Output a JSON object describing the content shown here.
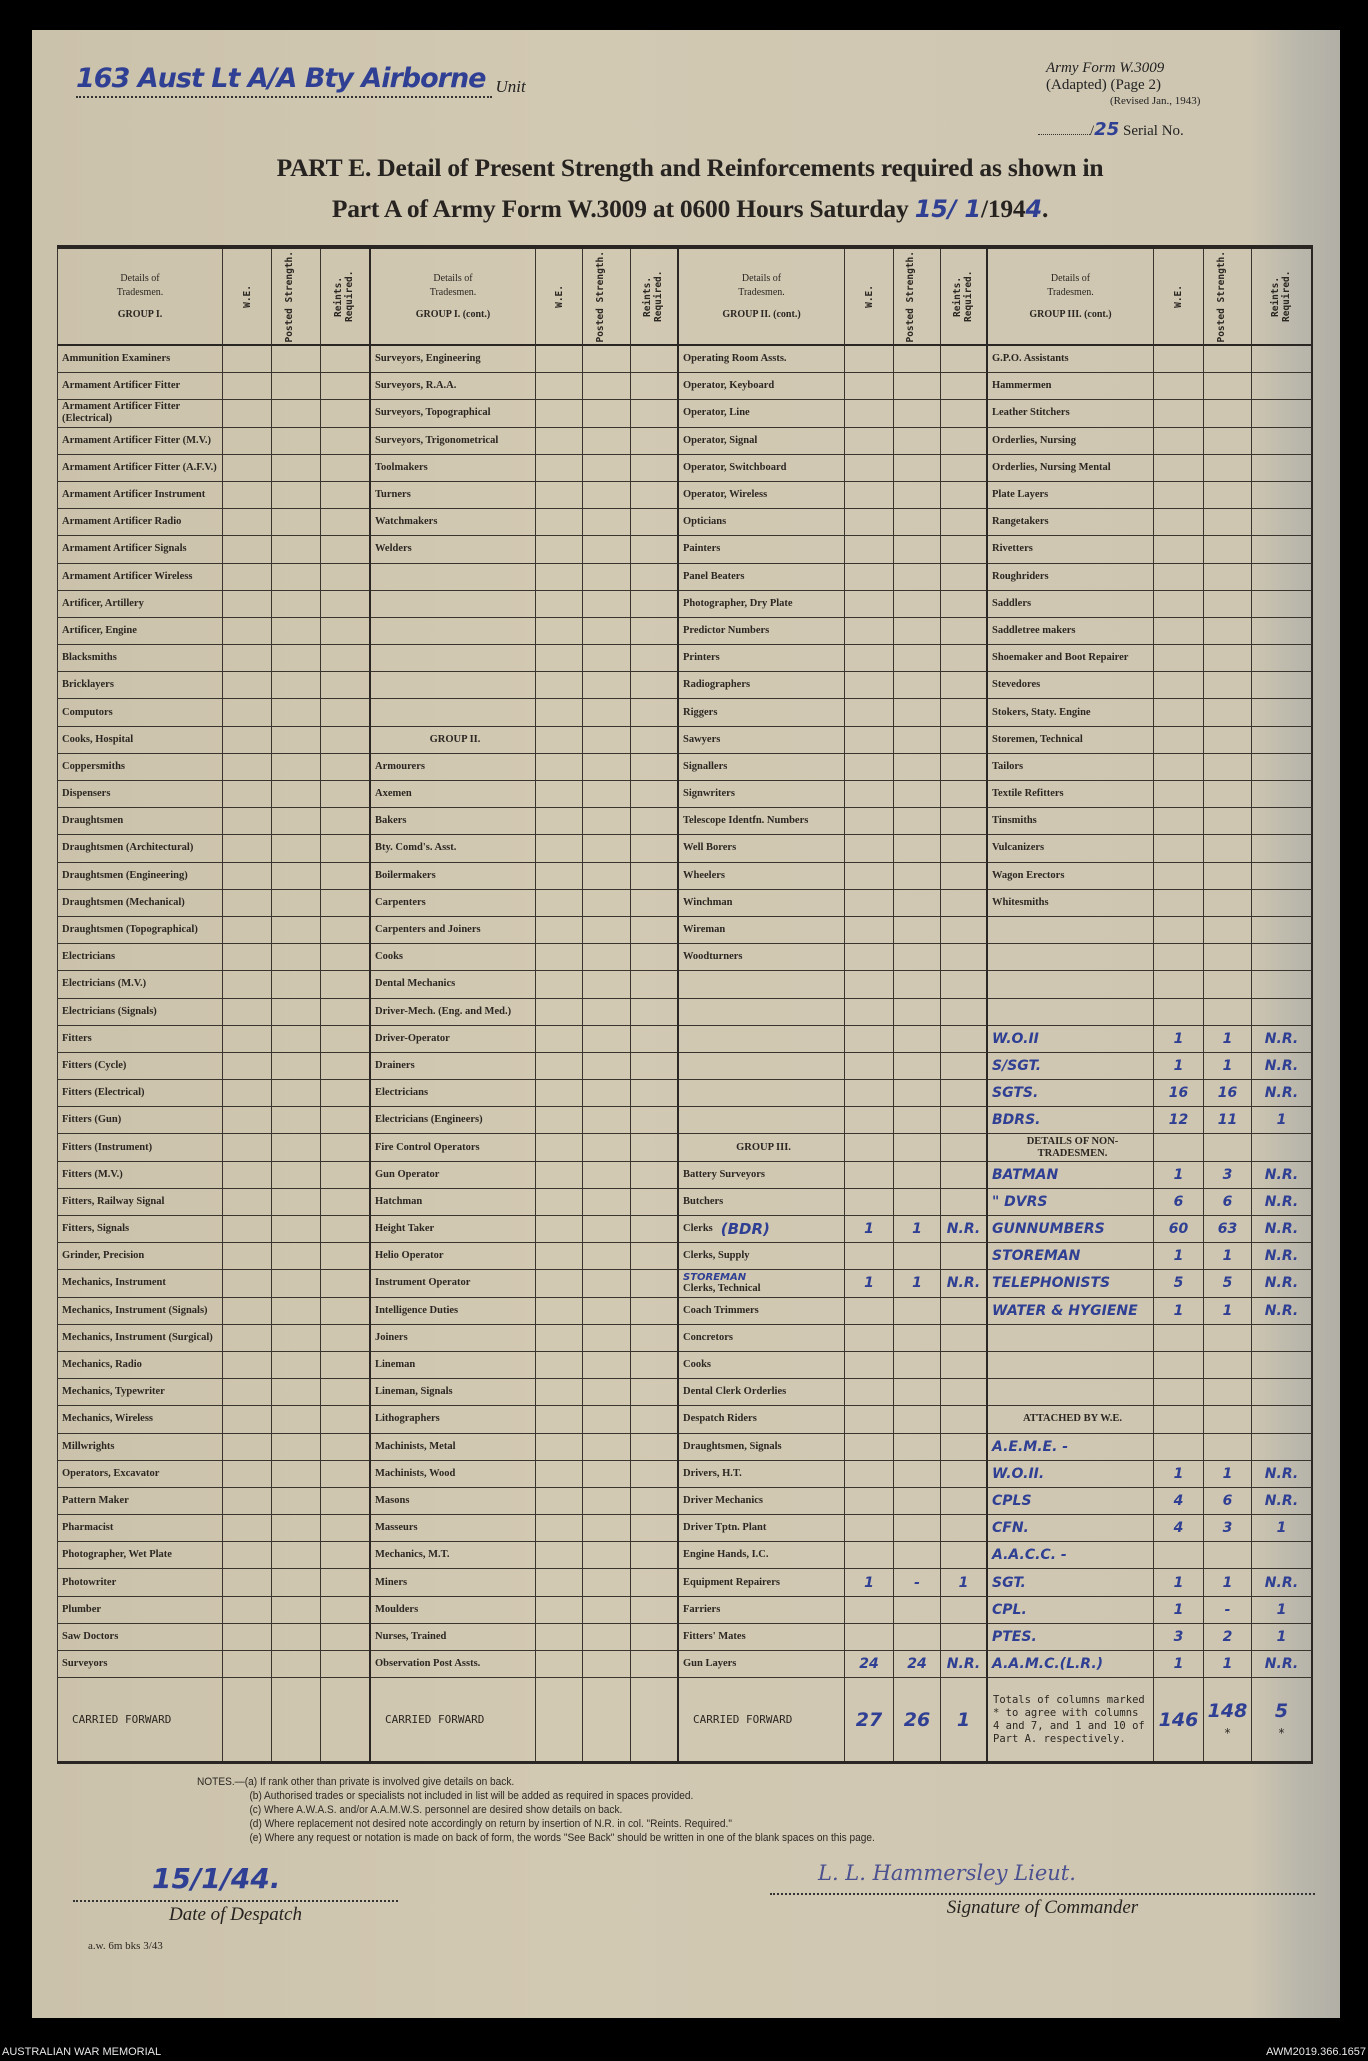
{
  "header": {
    "unit_handwritten": "163 Aust Lt A/A Bty Airborne",
    "unit_label": "Unit",
    "form_name": "Army Form W.3009",
    "form_adapted": "(Adapted) (Page 2)",
    "form_revised": "(Revised Jan., 1943)",
    "serial_prefix": "/",
    "serial_handwritten": "25",
    "serial_label": "Serial No.",
    "title_line1": "PART E.  Detail of Present Strength and Reinforcements required as shown in",
    "title_line2_prefix": "Part A of Army Form W.3009 at 0600 Hours Saturday",
    "title_date_handwritten": "15/ 1",
    "title_year_printed": "/194",
    "title_year_handwritten": "4",
    "title_suffix": "."
  },
  "table": {
    "col_headers": {
      "details": "Details of",
      "tradesmen": "Tradesmen.",
      "we": "W.E.",
      "posted": "Posted Strength.",
      "reinf": "Reints. Required."
    },
    "groups": [
      {
        "heading": "GROUP I.",
        "rows": [
          {
            "t": "Ammunition Examiners"
          },
          {
            "t": "Armament Artificer Fitter"
          },
          {
            "t": "Armament Artificer Fitter (Electrical)"
          },
          {
            "t": "Armament Artificer Fitter (M.V.)"
          },
          {
            "t": "Armament Artificer Fitter (A.F.V.)"
          },
          {
            "t": "Armament Artificer Instrument"
          },
          {
            "t": "Armament Artificer Radio"
          },
          {
            "t": "Armament Artificer Signals"
          },
          {
            "t": "Armament Artificer Wireless"
          },
          {
            "t": "Artificer, Artillery"
          },
          {
            "t": "Artificer, Engine"
          },
          {
            "t": "Blacksmiths"
          },
          {
            "t": "Bricklayers"
          },
          {
            "t": "Computors"
          },
          {
            "t": "Cooks, Hospital"
          },
          {
            "t": "Coppersmiths"
          },
          {
            "t": "Dispensers"
          },
          {
            "t": "Draughtsmen"
          },
          {
            "t": "Draughtsmen (Architectural)"
          },
          {
            "t": "Draughtsmen (Engineering)"
          },
          {
            "t": "Draughtsmen (Mechanical)"
          },
          {
            "t": "Draughtsmen (Topographical)"
          },
          {
            "t": "Electricians"
          },
          {
            "t": "Electricians (M.V.)"
          },
          {
            "t": "Electricians (Signals)"
          },
          {
            "t": "Fitters"
          },
          {
            "t": "Fitters (Cycle)"
          },
          {
            "t": "Fitters (Electrical)"
          },
          {
            "t": "Fitters (Gun)"
          },
          {
            "t": "Fitters (Instrument)"
          },
          {
            "t": "Fitters (M.V.)"
          },
          {
            "t": "Fitters, Railway Signal"
          },
          {
            "t": "Fitters, Signals"
          },
          {
            "t": "Grinder, Precision"
          },
          {
            "t": "Mechanics, Instrument"
          },
          {
            "t": "Mechanics, Instrument (Signals)"
          },
          {
            "t": "Mechanics, Instrument (Surgical)"
          },
          {
            "t": "Mechanics, Radio"
          },
          {
            "t": "Mechanics, Typewriter"
          },
          {
            "t": "Mechanics, Wireless"
          },
          {
            "t": "Millwrights"
          },
          {
            "t": "Operators, Excavator"
          },
          {
            "t": "Pattern Maker"
          },
          {
            "t": "Pharmacist"
          },
          {
            "t": "Photographer, Wet Plate"
          },
          {
            "t": "Photowriter"
          },
          {
            "t": "Plumber"
          },
          {
            "t": "Saw Doctors"
          },
          {
            "t": "Surveyors"
          }
        ],
        "carried": {
          "label": "CARRIED FORWARD",
          "we": "",
          "ps": "",
          "rr": ""
        }
      },
      {
        "heading": "GROUP I. (cont.)",
        "rows": [
          {
            "t": "Surveyors, Engineering"
          },
          {
            "t": "Surveyors, R.A.A."
          },
          {
            "t": "Surveyors, Topographical"
          },
          {
            "t": "Surveyors, Trigonometrical"
          },
          {
            "t": "Toolmakers"
          },
          {
            "t": "Turners"
          },
          {
            "t": "Watchmakers"
          },
          {
            "t": "Welders"
          },
          {
            "t": ""
          },
          {
            "t": ""
          },
          {
            "t": ""
          },
          {
            "t": ""
          },
          {
            "t": ""
          },
          {
            "t": ""
          },
          {
            "t": "GROUP II.",
            "s": "heading"
          },
          {
            "t": "Armourers"
          },
          {
            "t": "Axemen"
          },
          {
            "t": "Bakers"
          },
          {
            "t": "Bty. Comd's. Asst."
          },
          {
            "t": "Boilermakers"
          },
          {
            "t": "Carpenters"
          },
          {
            "t": "Carpenters and Joiners"
          },
          {
            "t": "Cooks"
          },
          {
            "t": "Dental Mechanics"
          },
          {
            "t": "Driver-Mech. (Eng. and Med.)"
          },
          {
            "t": "Driver-Operator"
          },
          {
            "t": "Drainers"
          },
          {
            "t": "Electricians"
          },
          {
            "t": "Electricians (Engineers)"
          },
          {
            "t": "Fire Control Operators"
          },
          {
            "t": "Gun Operator"
          },
          {
            "t": "Hatchman"
          },
          {
            "t": "Height Taker"
          },
          {
            "t": "Helio Operator"
          },
          {
            "t": "Instrument Operator"
          },
          {
            "t": "Intelligence Duties"
          },
          {
            "t": "Joiners"
          },
          {
            "t": "Lineman"
          },
          {
            "t": "Lineman, Signals"
          },
          {
            "t": "Lithographers"
          },
          {
            "t": "Machinists, Metal"
          },
          {
            "t": "Machinists, Wood"
          },
          {
            "t": "Masons"
          },
          {
            "t": "Masseurs"
          },
          {
            "t": "Mechanics, M.T."
          },
          {
            "t": "Miners"
          },
          {
            "t": "Moulders"
          },
          {
            "t": "Nurses, Trained"
          },
          {
            "t": "Observation Post Assts."
          }
        ],
        "carried": {
          "label": "CARRIED FORWARD",
          "we": "",
          "ps": "",
          "rr": ""
        }
      },
      {
        "heading": "GROUP II. (cont.)",
        "rows": [
          {
            "t": "Operating Room Assts."
          },
          {
            "t": "Operator, Keyboard"
          },
          {
            "t": "Operator, Line"
          },
          {
            "t": "Operator, Signal"
          },
          {
            "t": "Operator, Switchboard"
          },
          {
            "t": "Operator, Wireless"
          },
          {
            "t": "Opticians"
          },
          {
            "t": "Painters"
          },
          {
            "t": "Panel Beaters"
          },
          {
            "t": "Photographer, Dry Plate"
          },
          {
            "t": "Predictor Numbers"
          },
          {
            "t": "Printers"
          },
          {
            "t": "Radiographers"
          },
          {
            "t": "Riggers"
          },
          {
            "t": "Sawyers"
          },
          {
            "t": "Signallers"
          },
          {
            "t": "Signwriters"
          },
          {
            "t": "Telescope Identfn. Numbers"
          },
          {
            "t": "Well Borers"
          },
          {
            "t": "Wheelers"
          },
          {
            "t": "Winchman"
          },
          {
            "t": "Wireman"
          },
          {
            "t": "Woodturners"
          },
          {
            "t": ""
          },
          {
            "t": ""
          },
          {
            "t": ""
          },
          {
            "t": ""
          },
          {
            "t": ""
          },
          {
            "t": ""
          },
          {
            "t": "GROUP III.",
            "s": "heading"
          },
          {
            "t": "Battery Surveyors"
          },
          {
            "t": "Butchers"
          },
          {
            "t": "Clerks",
            "hand_note": "(BDR)",
            "we": "1",
            "ps": "1",
            "rr": "N.R."
          },
          {
            "t": "Clerks, Supply"
          },
          {
            "t": "Clerks, Technical",
            "over_note": "STOREMAN",
            "we": "1",
            "ps": "1",
            "rr": "N.R."
          },
          {
            "t": "Coach Trimmers"
          },
          {
            "t": "Concretors"
          },
          {
            "t": "Cooks"
          },
          {
            "t": "Dental Clerk Orderlies"
          },
          {
            "t": "Despatch Riders"
          },
          {
            "t": "Draughtsmen, Signals"
          },
          {
            "t": "Drivers, H.T."
          },
          {
            "t": "Driver Mechanics"
          },
          {
            "t": "Driver Tptn. Plant"
          },
          {
            "t": "Engine Hands, I.C."
          },
          {
            "t": "Equipment Repairers",
            "we": "1",
            "ps": "-",
            "rr": "1"
          },
          {
            "t": "Farriers"
          },
          {
            "t": "Fitters' Mates"
          },
          {
            "t": "Gun Layers",
            "we": "24",
            "ps": "24",
            "rr": "N.R."
          }
        ],
        "carried": {
          "label": "CARRIED FORWARD",
          "we": "27",
          "ps": "26",
          "rr": "1"
        }
      },
      {
        "heading": "GROUP III. (cont.)",
        "rows": [
          {
            "t": "G.P.O. Assistants"
          },
          {
            "t": "Hammermen"
          },
          {
            "t": "Leather Stitchers"
          },
          {
            "t": "Orderlies, Nursing"
          },
          {
            "t": "Orderlies, Nursing Mental"
          },
          {
            "t": "Plate Layers"
          },
          {
            "t": "Rangetakers"
          },
          {
            "t": "Rivetters"
          },
          {
            "t": "Roughriders"
          },
          {
            "t": "Saddlers"
          },
          {
            "t": "Saddletree makers"
          },
          {
            "t": "Shoemaker and Boot Repairer"
          },
          {
            "t": "Stevedores"
          },
          {
            "t": "Stokers, Staty. Engine"
          },
          {
            "t": "Storemen, Technical"
          },
          {
            "t": "Tailors"
          },
          {
            "t": "Textile Refitters"
          },
          {
            "t": "Tinsmiths"
          },
          {
            "t": "Vulcanizers"
          },
          {
            "t": "Wagon Erectors"
          },
          {
            "t": "Whitesmiths"
          },
          {
            "t": ""
          },
          {
            "t": ""
          },
          {
            "t": ""
          },
          {
            "t": ""
          },
          {
            "t": "W.O.II",
            "s": "hand",
            "we": "1",
            "ps": "1",
            "rr": "N.R."
          },
          {
            "t": "S/SGT.",
            "s": "hand",
            "we": "1",
            "ps": "1",
            "rr": "N.R."
          },
          {
            "t": "SGTS.",
            "s": "hand",
            "we": "16",
            "ps": "16",
            "rr": "N.R."
          },
          {
            "t": "BDRS.",
            "s": "hand",
            "we": "12",
            "ps": "11",
            "rr": "1"
          },
          {
            "t": "DETAILS OF NON-TRADESMEN.",
            "s": "heading"
          },
          {
            "t": "BATMAN",
            "s": "hand",
            "we": "1",
            "ps": "3",
            "rr": "N.R."
          },
          {
            "t": "\"  DVRS",
            "s": "hand",
            "we": "6",
            "ps": "6",
            "rr": "N.R."
          },
          {
            "t": "GUNNUMBERS",
            "s": "hand",
            "we": "60",
            "ps": "63",
            "rr": "N.R."
          },
          {
            "t": "STOREMAN",
            "s": "hand",
            "we": "1",
            "ps": "1",
            "rr": "N.R."
          },
          {
            "t": "TELEPHONISTS",
            "s": "hand",
            "we": "5",
            "ps": "5",
            "rr": "N.R."
          },
          {
            "t": "WATER & HYGIENE",
            "s": "hand",
            "we": "1",
            "ps": "1",
            "rr": "N.R."
          },
          {
            "t": ""
          },
          {
            "t": ""
          },
          {
            "t": ""
          },
          {
            "t": "ATTACHED BY W.E.",
            "s": "heading"
          },
          {
            "t": "A.E.M.E. -",
            "s": "hand"
          },
          {
            "t": "W.O.II.",
            "s": "hand",
            "we": "1",
            "ps": "1",
            "rr": "N.R."
          },
          {
            "t": "CPLS",
            "s": "hand",
            "we": "4",
            "ps": "6",
            "rr": "N.R."
          },
          {
            "t": "CFN.",
            "s": "hand",
            "we": "4",
            "ps": "3",
            "rr": "1"
          },
          {
            "t": "A.A.C.C. -",
            "s": "hand"
          },
          {
            "t": "SGT.",
            "s": "hand",
            "we": "1",
            "ps": "1",
            "rr": "N.R."
          },
          {
            "t": "CPL.",
            "s": "hand",
            "we": "1",
            "ps": "-",
            "rr": "1"
          },
          {
            "t": "PTES.",
            "s": "hand",
            "we": "3",
            "ps": "2",
            "rr": "1"
          },
          {
            "t": "A.A.M.C.(L.R.)",
            "s": "hand",
            "we": "1",
            "ps": "1",
            "rr": "N.R."
          }
        ],
        "carried": {
          "label": "Totals of columns marked * to agree with columns 4 and 7, and 1 and 10 of Part A. respectively.",
          "we": "146",
          "ps": "148",
          "rr": "5",
          "ps_mark": "*",
          "rr_mark": "*"
        }
      }
    ]
  },
  "notes": [
    "NOTES.—(a) If rank other than private is involved give details on back.",
    "(b) Authorised trades or specialists not included in list will be added as required in spaces provided.",
    "(c) Where A.W.A.S. and/or A.A.M.W.S. personnel are desired show details on back.",
    "(d) Where replacement not desired note accordingly on return by insertion of N.R. in col. \"Reints. Required.\"",
    "(e) Where any request or notation is made on back of form, the words \"See Back\" should be written in one of the blank spaces on this page."
  ],
  "footer": {
    "despatch_date_handwritten": "15/1/44.",
    "despatch_label": "Date of Despatch",
    "signature_handwritten": "L. L. Hammersley Lieut.",
    "signature_label": "Signature of Commander",
    "print_ref": "a.w. 6m bks 3/43"
  },
  "caption": {
    "left": "AUSTRALIAN WAR MEMORIAL",
    "right": "AWM2019.366.1657"
  },
  "colors": {
    "ink_blue": "#2f3f93",
    "paper": "#cfc6b0",
    "print": "#2b2722"
  }
}
